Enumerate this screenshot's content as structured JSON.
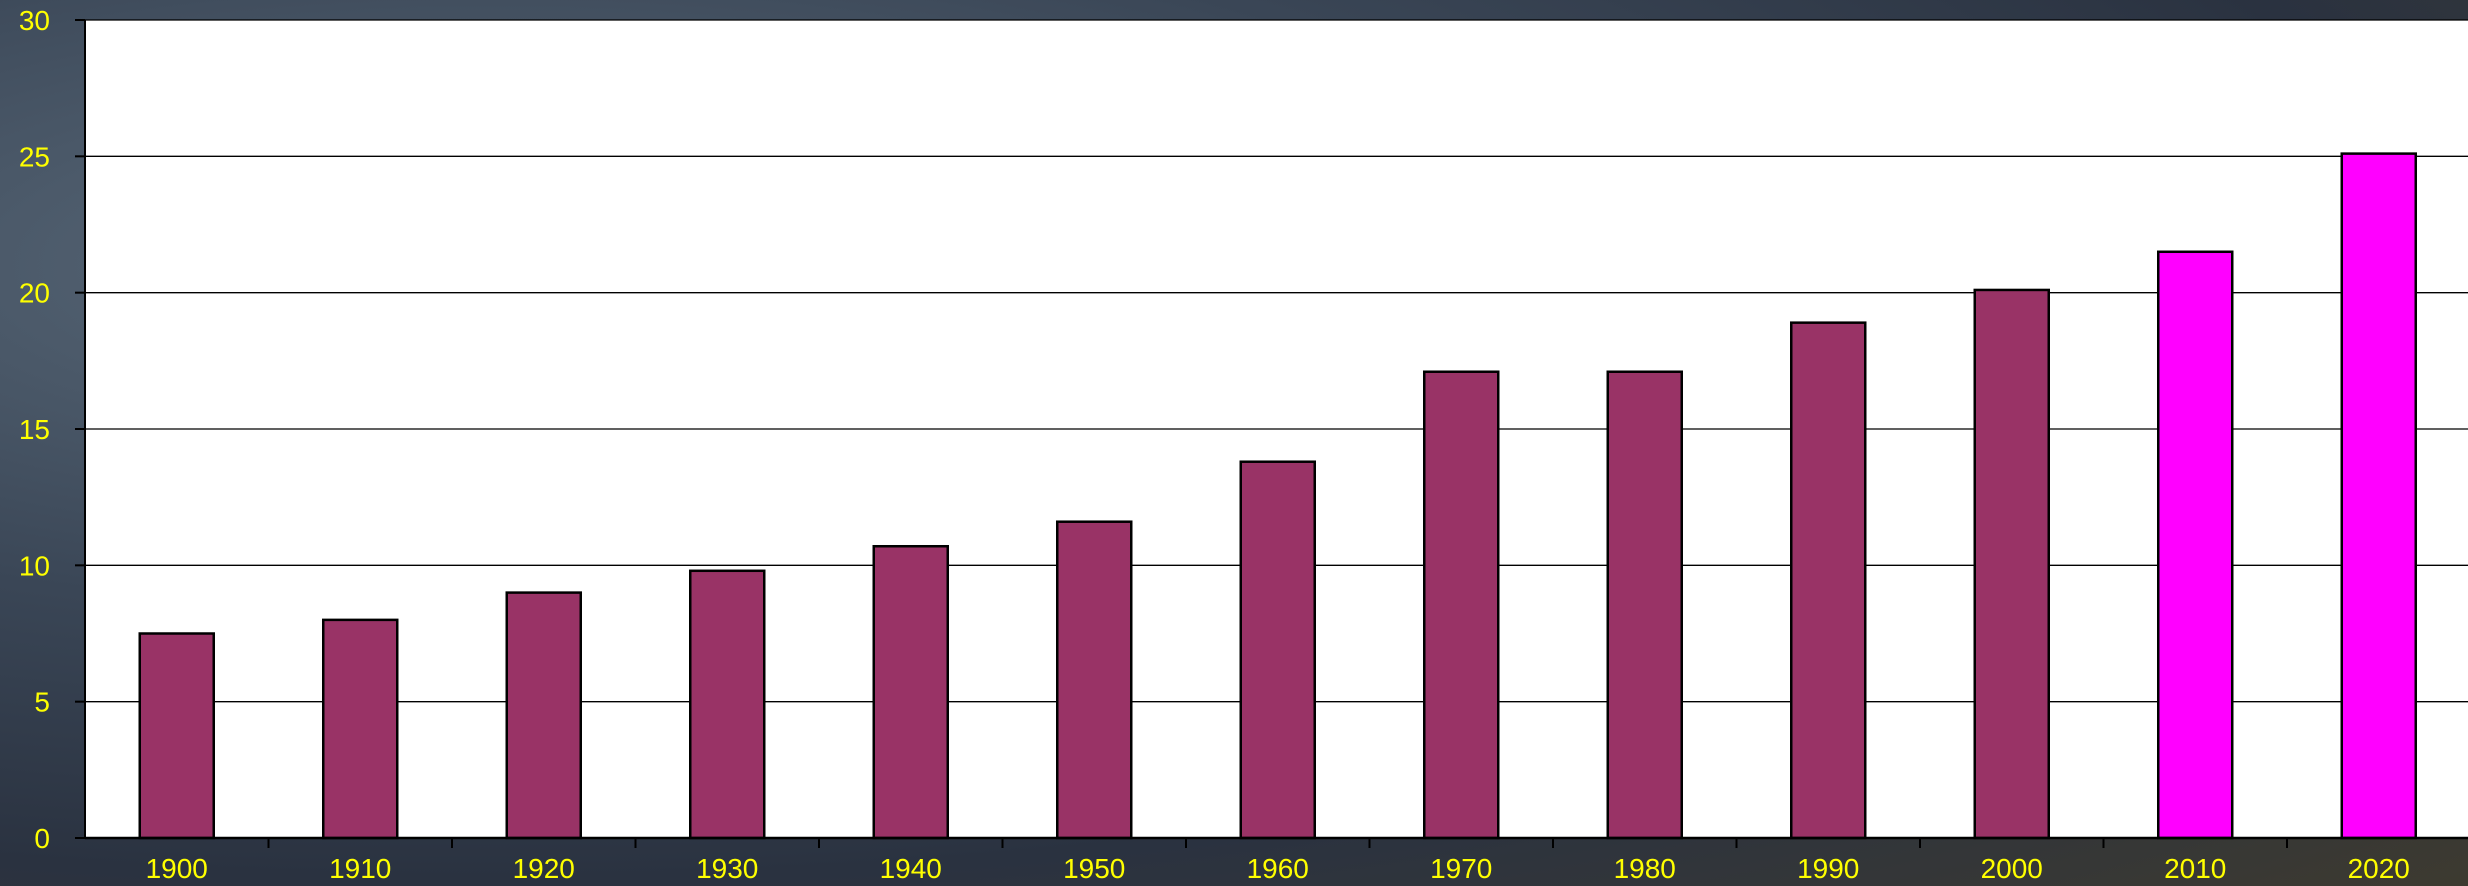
{
  "colors": {
    "bar": "#993366",
    "bar_highlight": "#ff00ff",
    "tick_label": "#ffff00",
    "plot_bg": "#ffffff",
    "gridline": "#000000"
  },
  "chart_data": {
    "type": "bar",
    "categories": [
      "1900",
      "1910",
      "1920",
      "1930",
      "1940",
      "1950",
      "1960",
      "1970",
      "1980",
      "1990",
      "2000",
      "2010",
      "2020"
    ],
    "values": [
      7.5,
      8.0,
      9.0,
      9.8,
      10.7,
      11.6,
      13.8,
      17.1,
      17.1,
      18.9,
      20.1,
      21.5,
      25.1
    ],
    "highlighted_categories": [
      "2010",
      "2020"
    ],
    "y_ticks": [
      "0",
      "5",
      "10",
      "15",
      "20",
      "25",
      "30"
    ],
    "ylim": [
      0,
      30
    ],
    "grid": true,
    "legend": "none"
  }
}
